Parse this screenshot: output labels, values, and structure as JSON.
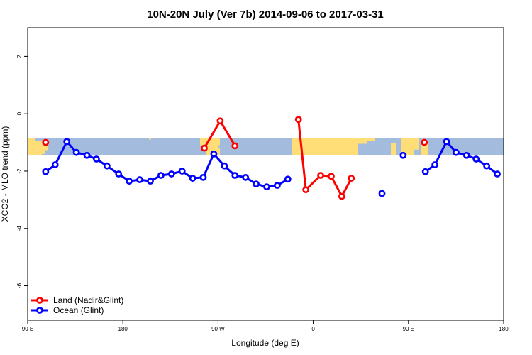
{
  "chart_data": {
    "type": "line",
    "title": "10N-20N July (Ver 7b)   2014-09-06 to 2017-03-31",
    "xlabel": "Longitude (deg E)",
    "ylabel": "XCO2 - MLO trend (ppm)",
    "x_tick_values": [
      90,
      180,
      270,
      360,
      450,
      540
    ],
    "x_tick_labels": [
      "90 E",
      "180",
      "90 W",
      "0",
      "90 E",
      "180"
    ],
    "y_tick_values": [
      -6,
      -4,
      -2,
      0,
      2
    ],
    "y_tick_labels": [
      "-6",
      "-4",
      "-2",
      "0",
      "2"
    ],
    "xlim": [
      90,
      540
    ],
    "ylim": [
      -7.2,
      3
    ],
    "land_band": {
      "y_low": -1.45,
      "y_high": -0.85,
      "land_color": "#ffdd77",
      "ocean_color": "#a3bbdd"
    },
    "legend_position": "bottom-left",
    "series": [
      {
        "name": "Land (Nadir&Glint)",
        "color": "#ff0000",
        "segments": [
          [
            [
              107,
              -1.0
            ]
          ],
          [
            [
              257,
              -1.2
            ],
            [
              272,
              -0.25
            ],
            [
              286,
              -1.12
            ]
          ],
          [
            [
              346,
              -0.2
            ],
            [
              353,
              -2.65
            ],
            [
              367,
              -2.15
            ],
            [
              377,
              -2.18
            ],
            [
              387,
              -2.88
            ],
            [
              396,
              -2.25
            ]
          ],
          [
            [
              465,
              -1.0
            ]
          ]
        ]
      },
      {
        "name": "Ocean (Glint)",
        "color": "#0000ff",
        "segments": [
          [
            [
              107,
              -2.02
            ],
            [
              116,
              -1.78
            ],
            [
              127,
              -0.97
            ],
            [
              136,
              -1.35
            ],
            [
              146,
              -1.45
            ],
            [
              155,
              -1.58
            ],
            [
              165,
              -1.82
            ],
            [
              176,
              -2.1
            ],
            [
              186,
              -2.35
            ],
            [
              196,
              -2.3
            ],
            [
              206,
              -2.35
            ],
            [
              216,
              -2.15
            ],
            [
              226,
              -2.1
            ],
            [
              236,
              -2.0
            ],
            [
              246,
              -2.25
            ],
            [
              256,
              -2.22
            ],
            [
              266,
              -1.4
            ],
            [
              276,
              -1.82
            ],
            [
              286,
              -2.15
            ],
            [
              296,
              -2.22
            ],
            [
              306,
              -2.45
            ],
            [
              316,
              -2.55
            ],
            [
              326,
              -2.5
            ],
            [
              336,
              -2.28
            ]
          ],
          [
            [
              425,
              -2.78
            ]
          ],
          [
            [
              445,
              -1.45
            ]
          ],
          [
            [
              466,
              -2.02
            ],
            [
              475,
              -1.78
            ],
            [
              486,
              -0.97
            ],
            [
              495,
              -1.35
            ],
            [
              505,
              -1.45
            ],
            [
              514,
              -1.58
            ],
            [
              524,
              -1.82
            ],
            [
              534,
              -2.1
            ]
          ]
        ]
      }
    ]
  }
}
